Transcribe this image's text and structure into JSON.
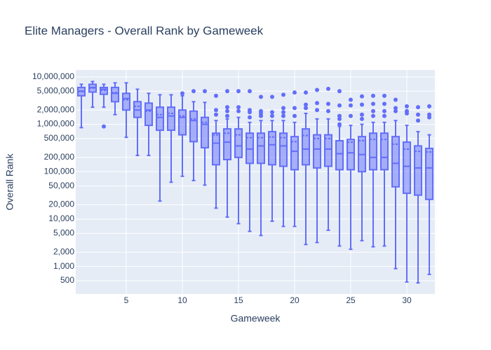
{
  "chart_data": {
    "type": "box",
    "title": "Elite Managers - Overall Rank by Gameweek",
    "x_label": "Gameweek",
    "y_label": "Overall Rank",
    "color": "#636efa",
    "log_y": true,
    "grid": true,
    "x": [
      1,
      2,
      3,
      4,
      5,
      6,
      7,
      8,
      9,
      10,
      11,
      12,
      13,
      14,
      15,
      16,
      17,
      18,
      19,
      20,
      21,
      22,
      23,
      24,
      25,
      26,
      27,
      28,
      29,
      30,
      31,
      32
    ],
    "low": [
      850000,
      2300000,
      2300000,
      1600000,
      530000,
      220000,
      220000,
      24000,
      60000,
      80000,
      65000,
      52000,
      17000,
      11000,
      8000,
      5500,
      4500,
      9000,
      7000,
      7000,
      2900,
      3200,
      5800,
      2700,
      2300,
      3500,
      2600,
      2700,
      900,
      470,
      450,
      680
    ],
    "q1": [
      4000000,
      4800000,
      4300000,
      3000000,
      2000000,
      1400000,
      950000,
      750000,
      750000,
      600000,
      430000,
      320000,
      140000,
      180000,
      200000,
      150000,
      150000,
      140000,
      130000,
      110000,
      140000,
      120000,
      130000,
      110000,
      110000,
      100000,
      110000,
      110000,
      48000,
      35000,
      32000,
      26000
    ],
    "median": [
      5000000,
      6000000,
      5500000,
      4500000,
      3500000,
      2000000,
      2000000,
      1400000,
      1500000,
      1400000,
      1200000,
      1000000,
      400000,
      420000,
      350000,
      300000,
      350000,
      370000,
      350000,
      270000,
      300000,
      300000,
      300000,
      240000,
      250000,
      230000,
      200000,
      200000,
      150000,
      130000,
      120000,
      120000
    ],
    "mean": [
      4900000,
      5800000,
      5200000,
      4700000,
      3300000,
      2400000,
      1900000,
      1600000,
      1700000,
      1500000,
      1300000,
      1100000,
      600000,
      650000,
      600000,
      520000,
      520000,
      540000,
      520000,
      430000,
      580000,
      500000,
      500000,
      450000,
      420000,
      450000,
      480000,
      480000,
      380000,
      300000,
      270000,
      260000
    ],
    "q3": [
      6000000,
      7000000,
      6000000,
      6000000,
      4500000,
      3000000,
      2800000,
      2300000,
      2300000,
      2000000,
      1900000,
      1400000,
      650000,
      800000,
      800000,
      650000,
      650000,
      700000,
      650000,
      550000,
      800000,
      600000,
      600000,
      450000,
      480000,
      550000,
      650000,
      650000,
      550000,
      420000,
      350000,
      310000
    ],
    "high": [
      7000000,
      8000000,
      7000000,
      7500000,
      7500000,
      5500000,
      4500000,
      4200000,
      4200000,
      4000000,
      3000000,
      2900000,
      1200000,
      1300000,
      1400000,
      1100000,
      1200000,
      1200000,
      1200000,
      1100000,
      1700000,
      1300000,
      1300000,
      900000,
      950000,
      1000000,
      1100000,
      1100000,
      1200000,
      950000,
      700000,
      600000
    ],
    "outliers": [
      [],
      [],
      [
        900000
      ],
      [],
      [],
      [],
      [],
      [],
      [],
      [
        4500000
      ],
      [
        5000000
      ],
      [
        5000000
      ],
      [
        4000000,
        2000000,
        1600000
      ],
      [
        5000000,
        2300000,
        1900000,
        1500000
      ],
      [
        5000000,
        2300000,
        1900000
      ],
      [
        5000000,
        2000000,
        1800000,
        1400000
      ],
      [
        3800000,
        1900000,
        1700000,
        1500000
      ],
      [
        3800000,
        1800000,
        1500000
      ],
      [
        4200000,
        2200000,
        1800000,
        1500000
      ],
      [
        4700000,
        2200000,
        1500000
      ],
      [
        4700000,
        2600000,
        2200000
      ],
      [
        5300000,
        2800000,
        2000000
      ],
      [
        5600000,
        2700000,
        1900000
      ],
      [
        5000000,
        2500000,
        1500000,
        1300000,
        1000000
      ],
      [
        3300000,
        2500000,
        1500000
      ],
      [
        3900000,
        2600000,
        1600000,
        1300000
      ],
      [
        4000000,
        2700000,
        1900000,
        1500000
      ],
      [
        4000000,
        2700000,
        1900000,
        1500000
      ],
      [
        3300000,
        2200000,
        1900000
      ],
      [
        2400000,
        1900000,
        1700000
      ],
      [
        2300000,
        1600000,
        1200000
      ],
      [
        2400000,
        1600000,
        1400000
      ]
    ],
    "xlim": [
      0.5,
      32.5
    ],
    "xticks": [
      5,
      10,
      15,
      20,
      25,
      30
    ],
    "ylim": [
      262,
      14000000
    ],
    "yticks": [
      {
        "value": 500,
        "label": "500"
      },
      {
        "value": 1000,
        "label": "1,000"
      },
      {
        "value": 2000,
        "label": "2,000"
      },
      {
        "value": 5000,
        "label": "5,000"
      },
      {
        "value": 10000,
        "label": "10,000"
      },
      {
        "value": 20000,
        "label": "20,000"
      },
      {
        "value": 50000,
        "label": "50,000"
      },
      {
        "value": 100000,
        "label": "100,000"
      },
      {
        "value": 200000,
        "label": "200,000"
      },
      {
        "value": 500000,
        "label": "500,000"
      },
      {
        "value": 1000000,
        "label": "1,000,000"
      },
      {
        "value": 2000000,
        "label": "2,000,000"
      },
      {
        "value": 5000000,
        "label": "5,000,000"
      },
      {
        "value": 10000000,
        "label": "10,000,000"
      }
    ]
  }
}
